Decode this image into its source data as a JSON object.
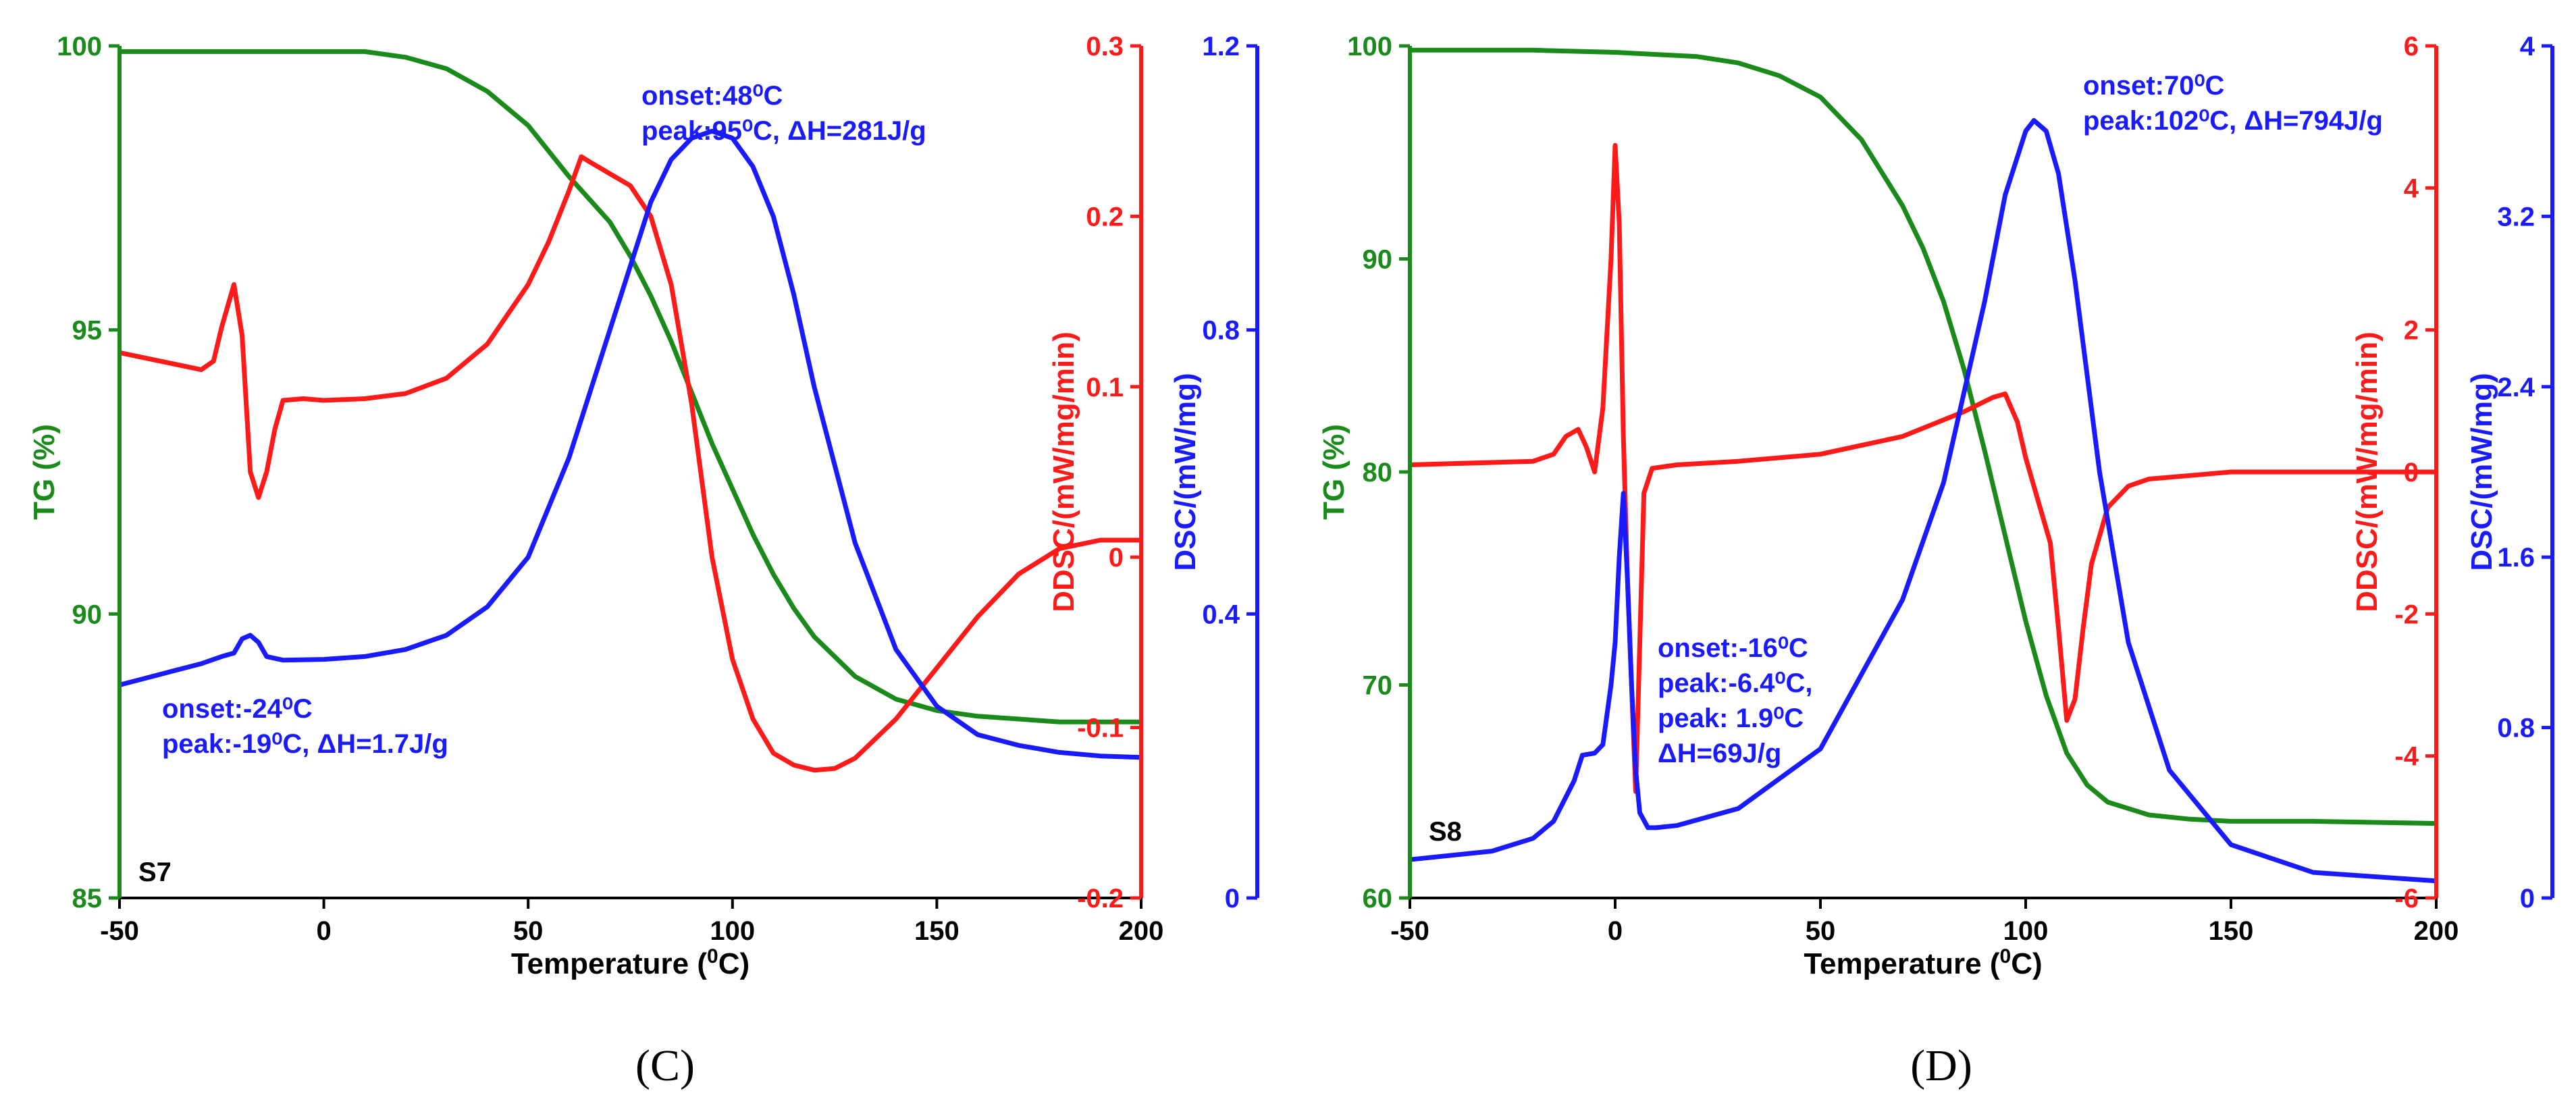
{
  "colors": {
    "tg": "#1a8a1a",
    "ddsc": "#ff1a1a",
    "dsc": "#1a1aff",
    "axis": "#000000"
  },
  "panels": [
    {
      "caption": "(C)",
      "sample": "S7"
    },
    {
      "caption": "(D)",
      "sample": "S8"
    }
  ],
  "chart_data": [
    {
      "type": "line",
      "title": "S7",
      "xlabel": "Temperature (0C)",
      "xlim": [
        -50,
        200
      ],
      "xticks": [
        -50,
        0,
        50,
        100,
        150,
        200
      ],
      "axes": {
        "tg": {
          "label": "TG (%)",
          "lim": [
            85,
            100
          ],
          "ticks": [
            85,
            90,
            95,
            100
          ]
        },
        "ddsc": {
          "label": "DDSC/(mW/mg/min)",
          "lim": [
            -0.2,
            0.3
          ],
          "ticks": [
            -0.2,
            -0.1,
            0,
            0.1,
            0.2,
            0.3
          ]
        },
        "dsc": {
          "label": "DSC/(mW/mg)",
          "lim": [
            0,
            1.2
          ],
          "ticks": [
            0,
            0.4,
            0.8,
            1.2
          ]
        }
      },
      "series": [
        {
          "name": "TG",
          "axis": "tg",
          "x": [
            -50,
            -20,
            0,
            10,
            20,
            30,
            40,
            50,
            60,
            70,
            75,
            80,
            85,
            90,
            95,
            100,
            105,
            110,
            115,
            120,
            130,
            140,
            150,
            160,
            180,
            200
          ],
          "y": [
            99.9,
            99.9,
            99.9,
            99.9,
            99.8,
            99.6,
            99.2,
            98.6,
            97.7,
            96.9,
            96.3,
            95.6,
            94.8,
            93.9,
            93.0,
            92.2,
            91.4,
            90.7,
            90.1,
            89.6,
            88.9,
            88.5,
            88.3,
            88.2,
            88.1,
            88.1
          ]
        },
        {
          "name": "DDSC",
          "axis": "ddsc",
          "x": [
            -50,
            -40,
            -30,
            -27,
            -25,
            -22,
            -20,
            -18,
            -16,
            -14,
            -12,
            -10,
            -5,
            0,
            10,
            20,
            30,
            40,
            50,
            55,
            60,
            63,
            65,
            70,
            75,
            80,
            85,
            90,
            95,
            100,
            105,
            110,
            115,
            120,
            125,
            130,
            140,
            150,
            160,
            170,
            180,
            190,
            200
          ],
          "y": [
            0.12,
            0.115,
            0.11,
            0.115,
            0.135,
            0.16,
            0.13,
            0.05,
            0.035,
            0.05,
            0.075,
            0.092,
            0.093,
            0.092,
            0.093,
            0.096,
            0.105,
            0.125,
            0.16,
            0.185,
            0.215,
            0.235,
            0.232,
            0.225,
            0.218,
            0.2,
            0.16,
            0.09,
            0.0,
            -0.06,
            -0.095,
            -0.115,
            -0.122,
            -0.125,
            -0.124,
            -0.118,
            -0.095,
            -0.065,
            -0.035,
            -0.01,
            0.005,
            0.01,
            0.01
          ]
        },
        {
          "name": "DSC",
          "axis": "dsc",
          "x": [
            -50,
            -40,
            -30,
            -25,
            -22,
            -20,
            -18,
            -16,
            -14,
            -10,
            0,
            10,
            20,
            30,
            40,
            50,
            60,
            70,
            80,
            85,
            90,
            95,
            100,
            105,
            110,
            115,
            120,
            130,
            140,
            150,
            160,
            170,
            180,
            190,
            200
          ],
          "y": [
            0.3,
            0.315,
            0.33,
            0.34,
            0.345,
            0.365,
            0.37,
            0.36,
            0.34,
            0.335,
            0.336,
            0.34,
            0.35,
            0.37,
            0.41,
            0.48,
            0.62,
            0.8,
            0.98,
            1.04,
            1.07,
            1.08,
            1.07,
            1.03,
            0.96,
            0.85,
            0.72,
            0.5,
            0.35,
            0.27,
            0.23,
            0.215,
            0.205,
            0.2,
            0.198
          ]
        }
      ],
      "annotations": [
        {
          "color": "dsc",
          "lines": [
            "onset:48⁰C",
            "peak:95⁰C, ΔH=281J/g"
          ]
        },
        {
          "color": "dsc",
          "lines": [
            "onset:-24⁰C",
            "peak:-19⁰C, ΔH=1.7J/g"
          ]
        }
      ]
    },
    {
      "type": "line",
      "title": "S8",
      "xlabel": "Temperature (0C)",
      "xlim": [
        -50,
        200
      ],
      "xticks": [
        -50,
        0,
        50,
        100,
        150,
        200
      ],
      "axes": {
        "tg": {
          "label": "TG (%)",
          "lim": [
            60,
            100
          ],
          "ticks": [
            60,
            70,
            80,
            90,
            100
          ]
        },
        "ddsc": {
          "label": "DDSC/(mW/mg/min)",
          "lim": [
            -6,
            6
          ],
          "ticks": [
            -6,
            -4,
            -2,
            0,
            2,
            4,
            6
          ]
        },
        "dsc": {
          "label": "DSC/(mW/mg)",
          "lim": [
            0,
            4
          ],
          "ticks": [
            0,
            0.8,
            1.6,
            2.4,
            3.2,
            4
          ]
        }
      },
      "series": [
        {
          "name": "TG",
          "axis": "tg",
          "x": [
            -50,
            -20,
            0,
            20,
            30,
            40,
            50,
            60,
            70,
            75,
            80,
            85,
            90,
            95,
            100,
            105,
            110,
            115,
            120,
            130,
            140,
            150,
            170,
            200
          ],
          "y": [
            99.8,
            99.8,
            99.7,
            99.5,
            99.2,
            98.6,
            97.6,
            95.6,
            92.5,
            90.5,
            88.0,
            84.8,
            81.0,
            77.0,
            73.0,
            69.5,
            66.8,
            65.3,
            64.5,
            63.9,
            63.7,
            63.6,
            63.6,
            63.5
          ]
        },
        {
          "name": "DDSC",
          "axis": "ddsc",
          "x": [
            -50,
            -20,
            -15,
            -12,
            -9,
            -7,
            -5,
            -3,
            -1,
            0,
            1,
            2,
            3,
            5,
            7,
            9,
            15,
            30,
            50,
            70,
            85,
            92,
            95,
            98,
            100,
            103,
            106,
            108,
            110,
            112,
            114,
            116,
            120,
            125,
            130,
            140,
            150,
            170,
            200
          ],
          "y": [
            0.1,
            0.15,
            0.25,
            0.5,
            0.6,
            0.35,
            0.0,
            0.9,
            3.0,
            4.6,
            3.5,
            0.5,
            -1.5,
            -4.5,
            -0.3,
            0.05,
            0.1,
            0.15,
            0.25,
            0.5,
            0.85,
            1.05,
            1.1,
            0.7,
            0.2,
            -0.4,
            -1.0,
            -2.2,
            -3.5,
            -3.2,
            -2.2,
            -1.3,
            -0.5,
            -0.2,
            -0.1,
            -0.05,
            0.0,
            0.0,
            0.0
          ]
        },
        {
          "name": "DSC",
          "axis": "dsc",
          "x": [
            -50,
            -30,
            -20,
            -15,
            -10,
            -8,
            -5,
            -3,
            -1,
            0,
            1,
            2,
            3,
            4,
            5,
            6,
            8,
            10,
            15,
            30,
            50,
            70,
            80,
            90,
            95,
            100,
            102,
            105,
            108,
            112,
            118,
            125,
            135,
            150,
            170,
            200
          ],
          "y": [
            0.18,
            0.22,
            0.28,
            0.36,
            0.55,
            0.67,
            0.68,
            0.72,
            1.0,
            1.2,
            1.6,
            1.9,
            1.5,
            1.0,
            0.6,
            0.4,
            0.33,
            0.33,
            0.34,
            0.42,
            0.7,
            1.4,
            1.95,
            2.8,
            3.3,
            3.6,
            3.65,
            3.6,
            3.4,
            2.9,
            2.0,
            1.2,
            0.6,
            0.25,
            0.12,
            0.08
          ]
        }
      ],
      "annotations": [
        {
          "color": "dsc",
          "lines": [
            "onset:70⁰C",
            "peak:102⁰C, ΔH=794J/g"
          ]
        },
        {
          "color": "dsc",
          "lines": [
            "onset:-16⁰C",
            "peak:-6.4⁰C,",
            "peak: 1.9⁰C",
            "ΔH=69J/g"
          ]
        }
      ]
    }
  ]
}
